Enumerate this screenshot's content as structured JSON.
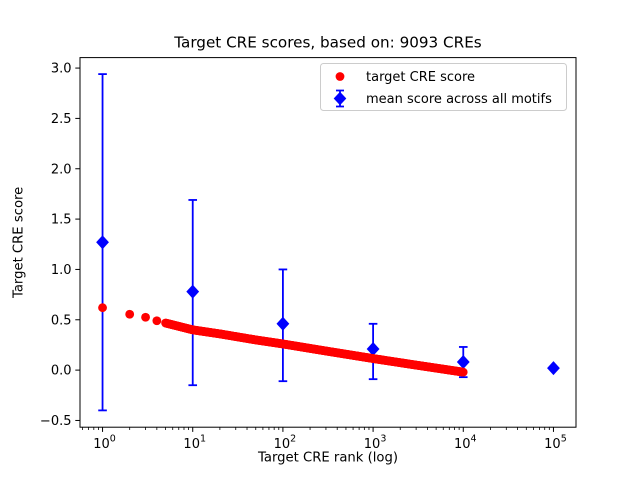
{
  "figure": {
    "background": "#ffffff",
    "text_color": "#000000",
    "spine_color": "#000000",
    "legend_border_color": "#cccccc"
  },
  "chart_data": {
    "type": "scatter",
    "title": "Target CRE scores, based on: 9093 CREs",
    "xlabel": "Target CRE rank (log)",
    "ylabel": "Target CRE score",
    "x_scale": "log",
    "xlim_log10": [
      -0.25,
      5.25
    ],
    "ylim": [
      -0.567,
      3.104
    ],
    "x_tick_exponents": [
      0,
      1,
      2,
      3,
      4,
      5
    ],
    "x_tick_base": "10",
    "y_ticks": [
      -0.5,
      0.0,
      0.5,
      1.0,
      1.5,
      2.0,
      2.5,
      3.0
    ],
    "y_tick_labels": [
      "−0.5",
      "0.0",
      "0.5",
      "1.0",
      "1.5",
      "2.0",
      "2.5",
      "3.0"
    ],
    "grid": false,
    "legend_position": "upper right",
    "series": [
      {
        "name": "target CRE score",
        "marker": "circle",
        "color": "#ff0000",
        "n_points": 9093,
        "rank_range": [
          1,
          10000
        ],
        "anchor_points": [
          [
            1,
            0.62
          ],
          [
            2,
            0.555
          ],
          [
            3,
            0.525
          ],
          [
            4,
            0.49
          ],
          [
            6,
            0.45
          ],
          [
            10,
            0.4
          ],
          [
            20,
            0.36
          ],
          [
            50,
            0.3
          ],
          [
            100,
            0.26
          ],
          [
            300,
            0.19
          ],
          [
            1000,
            0.115
          ],
          [
            3000,
            0.05
          ],
          [
            10000,
            -0.02
          ]
        ]
      },
      {
        "name": "mean score across all motifs",
        "marker": "diamond",
        "color": "#0000ff",
        "points": [
          {
            "x": 1,
            "y": 1.27,
            "y_low": -0.4,
            "y_high": 2.94
          },
          {
            "x": 10,
            "y": 0.78,
            "y_low": -0.15,
            "y_high": 1.69
          },
          {
            "x": 100,
            "y": 0.46,
            "y_low": -0.11,
            "y_high": 1.0
          },
          {
            "x": 1000,
            "y": 0.21,
            "y_low": -0.09,
            "y_high": 0.46
          },
          {
            "x": 10000,
            "y": 0.08,
            "y_low": -0.07,
            "y_high": 0.23
          },
          {
            "x": 100000,
            "y": 0.02,
            "y_low": 0.02,
            "y_high": 0.02
          }
        ]
      }
    ]
  }
}
